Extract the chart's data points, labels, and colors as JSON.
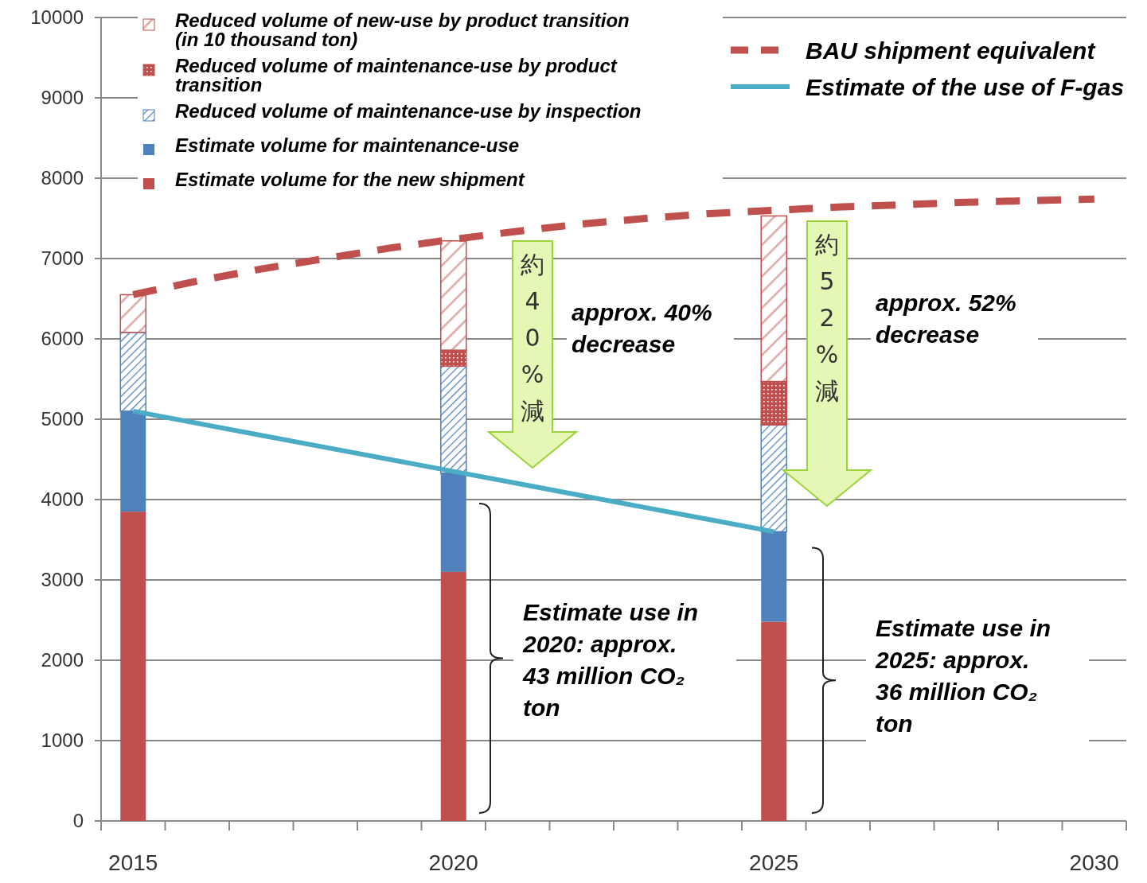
{
  "chart_data": {
    "type": "bar",
    "stacked": true,
    "categories": [
      "2015",
      null,
      null,
      null,
      null,
      "2020",
      null,
      null,
      null,
      null,
      "2025",
      null,
      null,
      null,
      null,
      "2030"
    ],
    "ylim": [
      0,
      10000
    ],
    "yticks": [
      0,
      1000,
      2000,
      3000,
      4000,
      5000,
      6000,
      7000,
      8000,
      9000,
      10000
    ],
    "grid": "y",
    "legend": "top",
    "series": [
      {
        "name": "Estimate volume for the new shipment",
        "color": "#c0504d",
        "values": [
          3850,
          null,
          null,
          null,
          null,
          3100,
          null,
          null,
          null,
          null,
          2480,
          null,
          null,
          null,
          null,
          null
        ]
      },
      {
        "name": "Estimate volume for maintenance-use",
        "color": "#4f81bd",
        "values": [
          1250,
          null,
          null,
          null,
          null,
          1230,
          null,
          null,
          null,
          null,
          1120,
          null,
          null,
          null,
          null,
          null
        ]
      },
      {
        "name": "Reduced volume of maintenance-use by inspection",
        "color": "#4f81bd",
        "values": [
          980,
          null,
          null,
          null,
          null,
          1330,
          null,
          null,
          null,
          null,
          1330,
          null,
          null,
          null,
          null,
          null
        ]
      },
      {
        "name": "Reduced volume of maintenance-use by product transition",
        "color": "#c0504d",
        "values": [
          0,
          null,
          null,
          null,
          null,
          200,
          null,
          null,
          null,
          null,
          540,
          null,
          null,
          null,
          null,
          null
        ]
      },
      {
        "name": "Reduced volume of new-use by product transition (in 10 thousand ton)",
        "color": "#c0504d",
        "values": [
          470,
          null,
          null,
          null,
          null,
          1360,
          null,
          null,
          null,
          null,
          2060,
          null,
          null,
          null,
          null,
          null
        ]
      },
      {
        "name": "BAU shipment equivalent",
        "type": "line",
        "line_style": "dashed",
        "color": "#c0504d",
        "values": [
          6550,
          6720,
          6870,
          7000,
          7130,
          7240,
          7340,
          7430,
          7500,
          7560,
          7600,
          7640,
          7670,
          7700,
          7720,
          7740
        ]
      },
      {
        "name": "Estimate of the use of F-gas",
        "type": "line",
        "color": "#4bacc6",
        "values": [
          5100,
          4950,
          4800,
          4650,
          4500,
          4350,
          4200,
          4050,
          3900,
          3750,
          3600,
          null,
          null,
          null,
          null,
          null
        ]
      }
    ],
    "annotations": [
      "約40%減",
      "approx. 40% decrease",
      "約52%減",
      "approx. 52% decrease",
      "Estimate use in 2020: approx. 43 million CO₂ ton",
      "Estimate use in 2025: approx. 36 million CO₂ ton"
    ]
  }
}
